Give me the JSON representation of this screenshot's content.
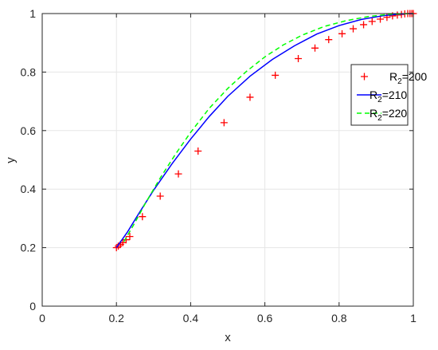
{
  "chart_data": {
    "type": "line",
    "title": "",
    "xlabel": "x",
    "ylabel": "y",
    "xlim": [
      0,
      1
    ],
    "ylim": [
      0,
      1
    ],
    "xticks": [
      "0",
      "0.2",
      "0.4",
      "0.6",
      "0.8",
      "1"
    ],
    "yticks": [
      "0",
      "0.2",
      "0.4",
      "0.6",
      "0.8",
      "1"
    ],
    "grid": true,
    "legend_position": "right",
    "series": [
      {
        "name": "R2=200",
        "legend_base": "R",
        "legend_sub": "2",
        "legend_rest": "=200",
        "style": "markers",
        "marker": "plus",
        "color": "#ff0000",
        "points": [
          [
            0.2,
            0.2
          ],
          [
            0.205,
            0.205
          ],
          [
            0.211,
            0.211
          ],
          [
            0.217,
            0.217
          ],
          [
            0.226,
            0.227
          ],
          [
            0.236,
            0.238
          ],
          [
            0.27,
            0.306
          ],
          [
            0.318,
            0.376
          ],
          [
            0.367,
            0.452
          ],
          [
            0.42,
            0.53
          ],
          [
            0.49,
            0.627
          ],
          [
            0.56,
            0.714
          ],
          [
            0.628,
            0.789
          ],
          [
            0.69,
            0.846
          ],
          [
            0.735,
            0.882
          ],
          [
            0.772,
            0.911
          ],
          [
            0.808,
            0.931
          ],
          [
            0.838,
            0.948
          ],
          [
            0.866,
            0.962
          ],
          [
            0.889,
            0.973
          ],
          [
            0.911,
            0.981
          ],
          [
            0.929,
            0.987
          ],
          [
            0.944,
            0.992
          ],
          [
            0.957,
            0.995
          ],
          [
            0.968,
            0.997
          ],
          [
            0.977,
            0.999
          ],
          [
            0.985,
            1.0
          ],
          [
            0.991,
            1.0
          ],
          [
            0.996,
            1.0
          ],
          [
            1.0,
            1.0
          ]
        ]
      },
      {
        "name": "R2=210",
        "legend_base": "R",
        "legend_sub": "2",
        "legend_rest": "=210",
        "style": "solid",
        "color": "#0000ff",
        "points": [
          [
            0.2,
            0.2
          ],
          [
            0.23,
            0.254
          ],
          [
            0.26,
            0.316
          ],
          [
            0.3,
            0.396
          ],
          [
            0.35,
            0.487
          ],
          [
            0.4,
            0.571
          ],
          [
            0.45,
            0.648
          ],
          [
            0.5,
            0.717
          ],
          [
            0.56,
            0.786
          ],
          [
            0.62,
            0.843
          ],
          [
            0.68,
            0.89
          ],
          [
            0.74,
            0.93
          ],
          [
            0.8,
            0.959
          ],
          [
            0.86,
            0.98
          ],
          [
            0.92,
            0.993
          ],
          [
            0.96,
            0.998
          ],
          [
            1.0,
            1.0
          ]
        ]
      },
      {
        "name": "R2=220",
        "legend_base": "R",
        "legend_sub": "2",
        "legend_rest": "=220",
        "style": "dashed",
        "color": "#00ff00",
        "points": [
          [
            0.22,
            0.22
          ],
          [
            0.25,
            0.286
          ],
          [
            0.28,
            0.356
          ],
          [
            0.32,
            0.442
          ],
          [
            0.36,
            0.521
          ],
          [
            0.4,
            0.594
          ],
          [
            0.45,
            0.676
          ],
          [
            0.5,
            0.744
          ],
          [
            0.55,
            0.802
          ],
          [
            0.6,
            0.852
          ],
          [
            0.65,
            0.893
          ],
          [
            0.7,
            0.926
          ],
          [
            0.76,
            0.956
          ],
          [
            0.82,
            0.976
          ],
          [
            0.88,
            0.99
          ],
          [
            0.94,
            0.998
          ],
          [
            1.0,
            1.0
          ]
        ]
      }
    ]
  }
}
